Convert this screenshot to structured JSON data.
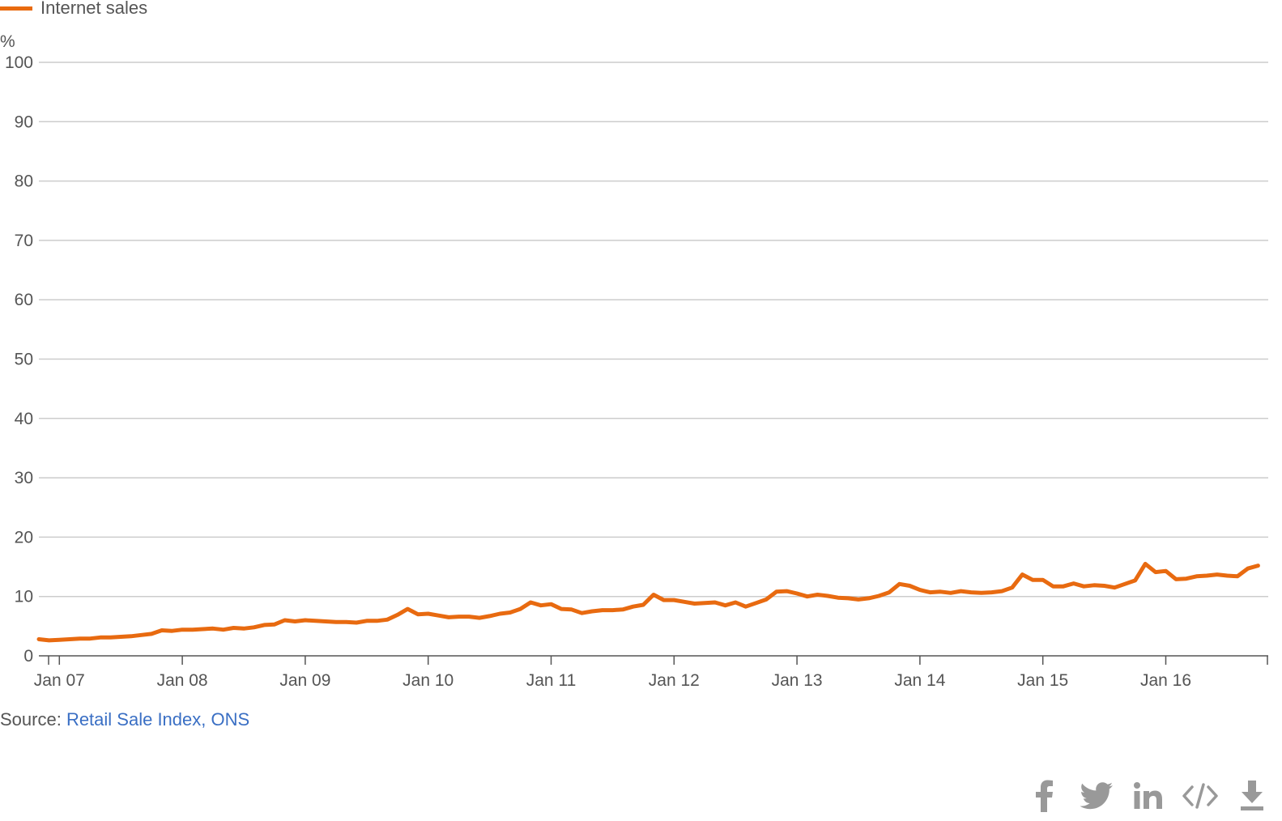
{
  "legend": {
    "label": "Internet sales",
    "color": "#e86a10"
  },
  "source": {
    "prefix": "Source: ",
    "link_text": "Retail Sale Index, ONS"
  },
  "share": {
    "icons": [
      "facebook-icon",
      "twitter-icon",
      "linkedin-icon",
      "embed-icon",
      "download-icon"
    ],
    "icon_color": "#999999"
  },
  "chart_data": {
    "type": "line",
    "ylabel": "%",
    "ylim": [
      0,
      100
    ],
    "yticks": [
      0,
      10,
      20,
      30,
      40,
      50,
      60,
      70,
      80,
      90,
      100
    ],
    "xlim": [
      "2006-11",
      "2016-11"
    ],
    "xtick_labels": [
      "Jan 07",
      "Jan 08",
      "Jan 09",
      "Jan 10",
      "Jan 11",
      "Jan 12",
      "Jan 13",
      "Jan 14",
      "Jan 15",
      "Jan 16"
    ],
    "xtick_dates": [
      "2007-01",
      "2008-01",
      "2009-01",
      "2010-01",
      "2011-01",
      "2012-01",
      "2013-01",
      "2014-01",
      "2015-01",
      "2016-01"
    ],
    "grid": true,
    "series": [
      {
        "name": "Internet sales",
        "color": "#e86a10",
        "start": "2006-11",
        "frequency": "monthly",
        "values": [
          2.8,
          2.6,
          2.7,
          2.8,
          2.9,
          2.9,
          3.1,
          3.1,
          3.2,
          3.3,
          3.5,
          3.7,
          4.3,
          4.2,
          4.4,
          4.4,
          4.5,
          4.6,
          4.4,
          4.7,
          4.6,
          4.8,
          5.2,
          5.3,
          6.0,
          5.8,
          6.0,
          5.9,
          5.8,
          5.7,
          5.7,
          5.6,
          5.9,
          5.9,
          6.1,
          6.9,
          7.9,
          7.0,
          7.1,
          6.8,
          6.5,
          6.6,
          6.6,
          6.4,
          6.7,
          7.1,
          7.3,
          7.9,
          9.0,
          8.5,
          8.7,
          7.9,
          7.8,
          7.2,
          7.5,
          7.7,
          7.7,
          7.8,
          8.3,
          8.6,
          10.3,
          9.4,
          9.4,
          9.1,
          8.8,
          8.9,
          9.0,
          8.5,
          9.0,
          8.3,
          8.9,
          9.5,
          10.8,
          10.9,
          10.5,
          10.0,
          10.3,
          10.1,
          9.8,
          9.7,
          9.5,
          9.7,
          10.1,
          10.7,
          12.1,
          11.8,
          11.1,
          10.7,
          10.8,
          10.6,
          10.9,
          10.7,
          10.6,
          10.7,
          10.9,
          11.5,
          13.7,
          12.8,
          12.8,
          11.7,
          11.7,
          12.2,
          11.7,
          11.9,
          11.8,
          11.5,
          12.1,
          12.7,
          15.5,
          14.1,
          14.3,
          12.9,
          13.0,
          13.4,
          13.5,
          13.7,
          13.5,
          13.4,
          14.7,
          15.2
        ]
      }
    ]
  }
}
